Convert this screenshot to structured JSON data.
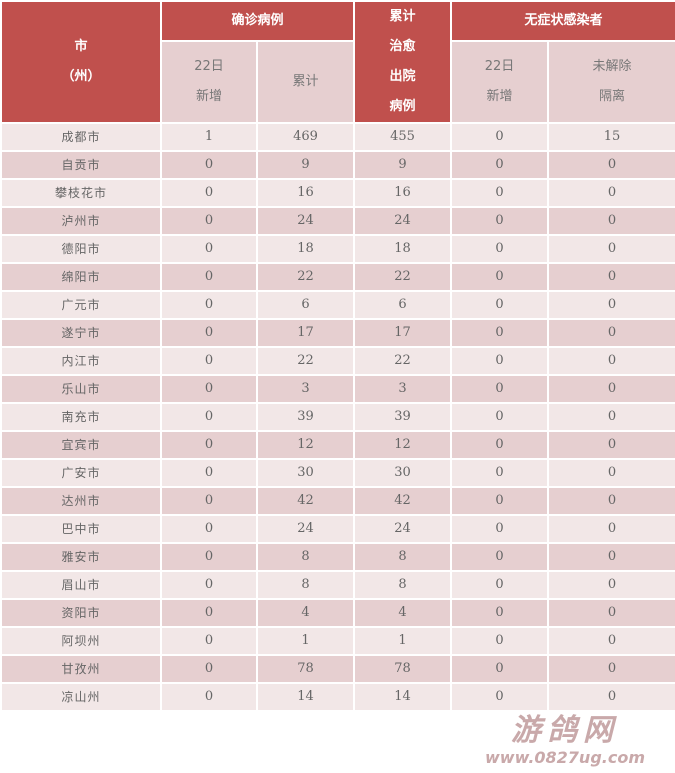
{
  "header": {
    "city": "市",
    "city_sub": "（州）",
    "confirmed": "确诊病例",
    "cured": [
      "累计",
      "治愈",
      "出院",
      "病例"
    ],
    "asymptomatic": "无症状感染者",
    "new_line1": "22日",
    "new_line2": "新增",
    "total": "累计",
    "unreleased_line1": "未解除",
    "unreleased_line2": "隔离"
  },
  "rows": [
    {
      "name": "成都市",
      "new": "1",
      "total": "469",
      "cured": "455",
      "asym_new": "0",
      "asym_iso": "15"
    },
    {
      "name": "自贡市",
      "new": "0",
      "total": "9",
      "cured": "9",
      "asym_new": "0",
      "asym_iso": "0"
    },
    {
      "name": "攀枝花市",
      "new": "0",
      "total": "16",
      "cured": "16",
      "asym_new": "0",
      "asym_iso": "0"
    },
    {
      "name": "泸州市",
      "new": "0",
      "total": "24",
      "cured": "24",
      "asym_new": "0",
      "asym_iso": "0"
    },
    {
      "name": "德阳市",
      "new": "0",
      "total": "18",
      "cured": "18",
      "asym_new": "0",
      "asym_iso": "0"
    },
    {
      "name": "绵阳市",
      "new": "0",
      "total": "22",
      "cured": "22",
      "asym_new": "0",
      "asym_iso": "0"
    },
    {
      "name": "广元市",
      "new": "0",
      "total": "6",
      "cured": "6",
      "asym_new": "0",
      "asym_iso": "0"
    },
    {
      "name": "遂宁市",
      "new": "0",
      "total": "17",
      "cured": "17",
      "asym_new": "0",
      "asym_iso": "0"
    },
    {
      "name": "内江市",
      "new": "0",
      "total": "22",
      "cured": "22",
      "asym_new": "0",
      "asym_iso": "0"
    },
    {
      "name": "乐山市",
      "new": "0",
      "total": "3",
      "cured": "3",
      "asym_new": "0",
      "asym_iso": "0"
    },
    {
      "name": "南充市",
      "new": "0",
      "total": "39",
      "cured": "39",
      "asym_new": "0",
      "asym_iso": "0"
    },
    {
      "name": "宜宾市",
      "new": "0",
      "total": "12",
      "cured": "12",
      "asym_new": "0",
      "asym_iso": "0"
    },
    {
      "name": "广安市",
      "new": "0",
      "total": "30",
      "cured": "30",
      "asym_new": "0",
      "asym_iso": "0"
    },
    {
      "name": "达州市",
      "new": "0",
      "total": "42",
      "cured": "42",
      "asym_new": "0",
      "asym_iso": "0"
    },
    {
      "name": "巴中市",
      "new": "0",
      "total": "24",
      "cured": "24",
      "asym_new": "0",
      "asym_iso": "0"
    },
    {
      "name": "雅安市",
      "new": "0",
      "total": "8",
      "cured": "8",
      "asym_new": "0",
      "asym_iso": "0"
    },
    {
      "name": "眉山市",
      "new": "0",
      "total": "8",
      "cured": "8",
      "asym_new": "0",
      "asym_iso": "0"
    },
    {
      "name": "资阳市",
      "new": "0",
      "total": "4",
      "cured": "4",
      "asym_new": "0",
      "asym_iso": "0"
    },
    {
      "name": "阿坝州",
      "new": "0",
      "total": "1",
      "cured": "1",
      "asym_new": "0",
      "asym_iso": "0"
    },
    {
      "name": "甘孜州",
      "new": "0",
      "total": "78",
      "cured": "78",
      "asym_new": "0",
      "asym_iso": "0"
    },
    {
      "name": "凉山州",
      "new": "0",
      "total": "14",
      "cured": "14",
      "asym_new": "0",
      "asym_iso": "0"
    }
  ],
  "watermark": {
    "title": "游鸽网",
    "url": "www.0827ug.com"
  },
  "colors": {
    "header": "#c0504d",
    "subheader": "#e6cfd0",
    "row_odd": "#f2e7e7",
    "row_even": "#e6cfd0"
  }
}
